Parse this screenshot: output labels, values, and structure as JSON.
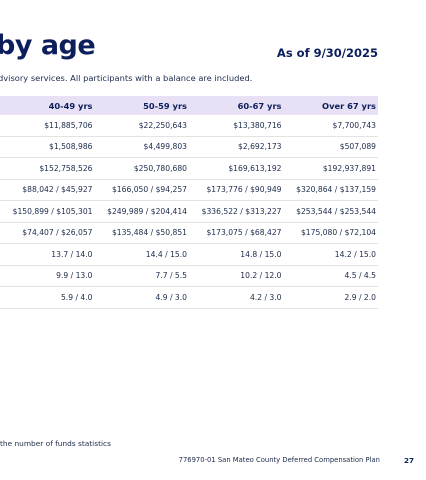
{
  "title": "by age",
  "as_of": "As of 9/30/2025",
  "subtitle": "dvisory services. All participants with a balance are included.",
  "table": {
    "headers": [
      "40-49 yrs",
      "50-59 yrs",
      "60-67 yrs",
      "Over 67 yrs"
    ],
    "rows": [
      [
        "$11,885,706",
        "$22,250,643",
        "$13,380,716",
        "$7,700,743"
      ],
      [
        "$1,508,986",
        "$4,499,803",
        "$2,692,173",
        "$507,089"
      ],
      [
        "$152,758,526",
        "$250,780,680",
        "$169,613,192",
        "$192,937,891"
      ],
      [
        "$88,042 / $45,927",
        "$166,050 / $94,257",
        "$173,776 / $90,949",
        "$320,864 / $137,159"
      ],
      [
        "$150,899 / $105,301",
        "$249,989 / $204,414",
        "$336,522 / $313,227",
        "$253,544 / $253,544"
      ],
      [
        "$74,407 / $26,057",
        "$135,484 / $50,851",
        "$173,075 / $68,427",
        "$175,080 / $72,104"
      ],
      [
        "13.7 / 14.0",
        "14.4 / 15.0",
        "14.8 / 15.0",
        "14.2 / 15.0"
      ],
      [
        "9.9 / 13.0",
        "7.7 / 5.5",
        "10.2 / 12.0",
        "4.5 / 4.5"
      ],
      [
        "5.9 / 4.0",
        "4.9 / 3.0",
        "4.2 / 3.0",
        "2.9 / 2.0"
      ]
    ]
  },
  "footnote": "the number of funds statistics",
  "footer": "776970-01 San Mateo County Deferred Compensation Plan",
  "page_number": "27"
}
